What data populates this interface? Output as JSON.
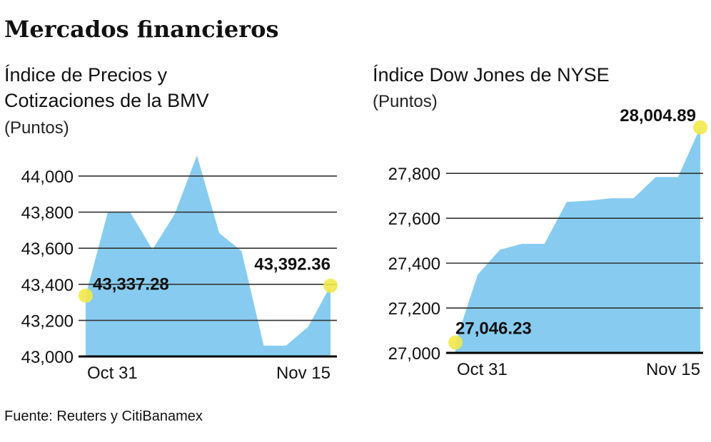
{
  "title": "Mercados financieros",
  "source": "Fuente: Reuters y CitiBanamex",
  "chart_data": [
    {
      "type": "area",
      "title": [
        "Índice de Precios y",
        "Cotizaciones de la BMV"
      ],
      "subtitle": "(Puntos)",
      "categories": [
        "Oct 31",
        null,
        null,
        null,
        null,
        null,
        null,
        null,
        null,
        null,
        null,
        "Nov 15"
      ],
      "values": [
        43337.28,
        43802,
        43800,
        43593,
        43790,
        44115,
        43684,
        43585,
        43060,
        43060,
        43165,
        43392.36
      ],
      "value_labels": [
        "43,337.28",
        null,
        null,
        null,
        null,
        null,
        null,
        null,
        null,
        null,
        null,
        "43,392.36"
      ],
      "color": "#87ccf0",
      "marker_color": "#f3e84c",
      "ylim": [
        43000,
        44150
      ],
      "yticks": [
        {
          "value": 43000,
          "label": "43,000"
        },
        {
          "value": 43200,
          "label": "43,200"
        },
        {
          "value": 43400,
          "label": "43,400"
        },
        {
          "value": 43600,
          "label": "43,600"
        },
        {
          "value": 43800,
          "label": "43,800"
        },
        {
          "value": 44000,
          "label": "44,000"
        }
      ],
      "grid": true
    },
    {
      "type": "area",
      "title": [
        "Índice Dow Jones de NYSE"
      ],
      "subtitle": "(Puntos)",
      "categories": [
        "Oct 31",
        null,
        null,
        null,
        null,
        null,
        null,
        null,
        null,
        null,
        null,
        "Nov 15"
      ],
      "values": [
        27046.23,
        27349,
        27460,
        27486,
        27486,
        27673,
        27679,
        27689,
        27689,
        27784,
        27784,
        28004.89
      ],
      "value_labels": [
        "27,046.23",
        null,
        null,
        null,
        null,
        null,
        null,
        null,
        null,
        null,
        null,
        "28,004.89"
      ],
      "color": "#87ccf0",
      "marker_color": "#f3e84c",
      "ylim": [
        27000,
        28020
      ],
      "yticks": [
        {
          "value": 27000,
          "label": "27,000"
        },
        {
          "value": 27200,
          "label": "27,200"
        },
        {
          "value": 27400,
          "label": "27,400"
        },
        {
          "value": 27600,
          "label": "27,600"
        },
        {
          "value": 27800,
          "label": "27,800"
        }
      ],
      "grid": true
    }
  ]
}
